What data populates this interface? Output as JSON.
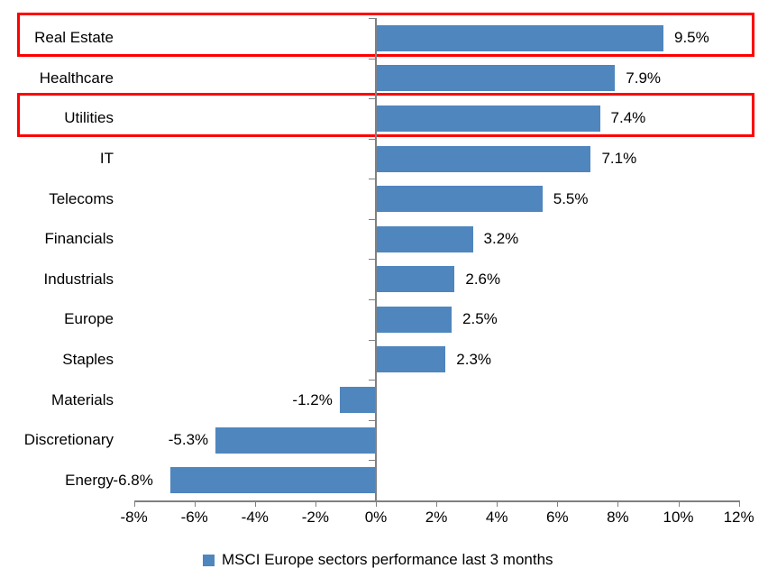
{
  "chart_data": {
    "type": "bar",
    "orientation": "horizontal",
    "title": "",
    "xlabel": "",
    "ylabel": "",
    "legend": "MSCI Europe sectors performance last 3 months",
    "legend_position": "bottom",
    "grid": false,
    "categories": [
      "Real Estate",
      "Healthcare",
      "Utilities",
      "IT",
      "Telecoms",
      "Financials",
      "Industrials",
      "Europe",
      "Staples",
      "Materials",
      "Discretionary",
      "Energy"
    ],
    "values": [
      9.5,
      7.9,
      7.4,
      7.1,
      5.5,
      3.2,
      2.6,
      2.5,
      2.3,
      -1.2,
      -5.3,
      -6.8
    ],
    "value_labels": [
      "9.5%",
      "7.9%",
      "7.4%",
      "7.1%",
      "5.5%",
      "3.2%",
      "2.6%",
      "2.5%",
      "2.3%",
      "-1.2%",
      "-5.3%",
      "-6.8%"
    ],
    "highlighted_categories": [
      "Real Estate",
      "Utilities"
    ],
    "xlim": [
      -8,
      12
    ],
    "x_tick_labels": [
      "-8%",
      "-6%",
      "-4%",
      "-2%",
      "0%",
      "2%",
      "4%",
      "6%",
      "8%",
      "10%",
      "12%"
    ],
    "colors": {
      "bar": "#4F86BE",
      "highlight_box": "#FF0000",
      "axis": "#808080",
      "text": "#000000",
      "background": "#FFFFFF"
    }
  }
}
